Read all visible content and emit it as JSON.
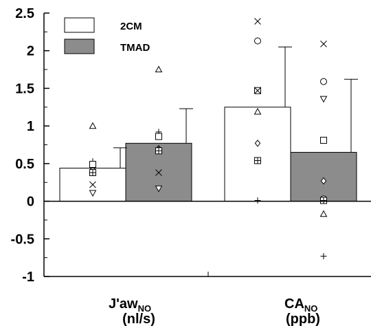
{
  "chart_data": {
    "type": "bar",
    "ylim": [
      -1,
      2.5
    ],
    "yticks": [
      "-1",
      "-0.5",
      "0",
      "0.5",
      "1",
      "1.5",
      "2",
      "2.5"
    ],
    "legend_position": "top-left",
    "grid": false,
    "colors": {
      "2CM": "#ffffff",
      "TMAD": "#8c8c8c"
    },
    "categories": [
      {
        "main": "J'aw",
        "sub": "NO",
        "unit": "(nl/s)"
      },
      {
        "main": "CA",
        "sub": "NO",
        "unit": "(ppb)"
      }
    ],
    "series": [
      {
        "name": "2CM",
        "values": [
          0.44,
          1.25
        ],
        "error_upper": [
          0.71,
          2.05
        ]
      },
      {
        "name": "TMAD",
        "values": [
          0.77,
          0.65
        ],
        "error_upper": [
          1.23,
          1.62
        ]
      }
    ],
    "individual_points": [
      {
        "category": 0,
        "series": "2CM",
        "points": [
          {
            "marker": "triangle-up",
            "y": 1.0
          },
          {
            "marker": "plus",
            "y": 0.53
          },
          {
            "marker": "square",
            "y": 0.49
          },
          {
            "marker": "circle",
            "y": 0.4
          },
          {
            "marker": "squared-plus",
            "y": 0.38
          },
          {
            "marker": "x",
            "y": 0.22
          },
          {
            "marker": "triangle-down",
            "y": 0.11
          }
        ]
      },
      {
        "category": 0,
        "series": "TMAD",
        "points": [
          {
            "marker": "triangle-up",
            "y": 1.75
          },
          {
            "marker": "plus",
            "y": 0.92
          },
          {
            "marker": "square",
            "y": 0.86
          },
          {
            "marker": "diamond",
            "y": 0.7
          },
          {
            "marker": "circle",
            "y": 0.68
          },
          {
            "marker": "squared-plus",
            "y": 0.67
          },
          {
            "marker": "x",
            "y": 0.38
          },
          {
            "marker": "triangle-down",
            "y": 0.17
          }
        ]
      },
      {
        "category": 1,
        "series": "2CM",
        "points": [
          {
            "marker": "x",
            "y": 2.39
          },
          {
            "marker": "circle",
            "y": 2.13
          },
          {
            "marker": "square",
            "y": 1.47
          },
          {
            "marker": "x",
            "y": 1.47
          },
          {
            "marker": "triangle-up",
            "y": 1.19
          },
          {
            "marker": "diamond",
            "y": 0.77
          },
          {
            "marker": "squared-plus",
            "y": 0.54
          },
          {
            "marker": "plus",
            "y": 0.01
          }
        ]
      },
      {
        "category": 1,
        "series": "TMAD",
        "points": [
          {
            "marker": "x",
            "y": 2.09
          },
          {
            "marker": "circle",
            "y": 1.59
          },
          {
            "marker": "triangle-down",
            "y": 1.36
          },
          {
            "marker": "square",
            "y": 0.81
          },
          {
            "marker": "diamond",
            "y": 0.27
          },
          {
            "marker": "circle",
            "y": 0.03
          },
          {
            "marker": "squared-plus",
            "y": 0.01
          },
          {
            "marker": "triangle-up",
            "y": -0.17
          },
          {
            "marker": "plus",
            "y": -0.73
          }
        ]
      }
    ]
  }
}
